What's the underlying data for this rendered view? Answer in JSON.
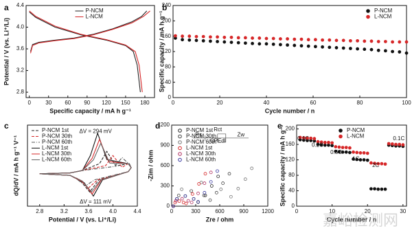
{
  "chart_data": [
    {
      "panel": "a",
      "type": "line",
      "xlabel": "Specific capacity / mA h g⁻¹",
      "ylabel": "Potential / V (vs. Li⁺/Li)",
      "xlim": [
        -5,
        195
      ],
      "ylim": [
        2.7,
        4.4
      ],
      "xticks": [
        0,
        30,
        60,
        90,
        120,
        150,
        180
      ],
      "yticks": [
        2.8,
        3.2,
        3.6,
        {
          "value": 4,
          "label": "4.0"
        },
        4.4
      ],
      "legend": "upper-center",
      "series": [
        {
          "name": "P-NCM",
          "color": "#222222",
          "dash": "solid",
          "x": [
            2,
            5,
            15,
            40,
            70,
            100,
            130,
            160,
            175,
            183,
            null,
            0,
            10,
            40,
            80,
            120,
            150,
            162,
            168,
            171,
            173
          ],
          "values": [
            3.55,
            3.68,
            3.72,
            3.76,
            3.8,
            3.87,
            3.97,
            4.1,
            4.2,
            4.3,
            null,
            4.28,
            4.18,
            4.0,
            3.86,
            3.76,
            3.66,
            3.55,
            3.3,
            3.0,
            2.8
          ]
        },
        {
          "name": "L-NCM",
          "color": "#d62728",
          "dash": "solid",
          "x": [
            2,
            5,
            15,
            40,
            70,
            100,
            130,
            160,
            178,
            188,
            null,
            0,
            10,
            40,
            80,
            120,
            150,
            165,
            171,
            174,
            176
          ],
          "values": [
            3.52,
            3.66,
            3.71,
            3.75,
            3.79,
            3.86,
            3.96,
            4.08,
            4.2,
            4.3,
            null,
            4.3,
            4.2,
            4.02,
            3.87,
            3.77,
            3.67,
            3.55,
            3.3,
            3.0,
            2.8
          ]
        }
      ]
    },
    {
      "panel": "b",
      "type": "scatter",
      "xlabel": "Cycle number / n",
      "ylabel": "Specific capacity / mA h g⁻¹",
      "xlim": [
        0,
        100
      ],
      "ylim": [
        0,
        240
      ],
      "xticks": [
        0,
        20,
        40,
        60,
        80,
        100
      ],
      "yticks": [
        0,
        40,
        80,
        120,
        160,
        200,
        240
      ],
      "legend": "upper-right",
      "series": [
        {
          "name": "P-NCM",
          "color": "#111111",
          "marker": "filled",
          "x": [
            1,
            4,
            7,
            10,
            13,
            16,
            19,
            22,
            25,
            28,
            31,
            34,
            37,
            40,
            43,
            46,
            49,
            52,
            55,
            58,
            61,
            64,
            67,
            70,
            73,
            76,
            79,
            82,
            85,
            88,
            91,
            94,
            97,
            100
          ],
          "values": [
            155,
            151,
            150,
            149,
            148,
            147,
            146,
            145,
            144,
            143,
            142,
            141,
            140,
            140,
            139,
            138,
            137,
            136,
            135,
            134,
            133,
            132,
            131,
            130,
            129,
            128,
            127,
            126,
            125,
            123,
            122,
            120,
            119,
            116
          ]
        },
        {
          "name": "L-NCM",
          "color": "#d62728",
          "marker": "filled",
          "x": [
            1,
            4,
            7,
            10,
            13,
            16,
            19,
            22,
            25,
            28,
            31,
            34,
            37,
            40,
            43,
            46,
            49,
            52,
            55,
            58,
            61,
            64,
            67,
            70,
            73,
            76,
            79,
            82,
            85,
            88,
            91,
            94,
            97,
            100
          ],
          "values": [
            161,
            160,
            160,
            159,
            159,
            158,
            158,
            157,
            157,
            156,
            156,
            155,
            155,
            154,
            154,
            153,
            153,
            152,
            152,
            151,
            151,
            150,
            150,
            149,
            149,
            148,
            148,
            147,
            147,
            146,
            146,
            145,
            145,
            145
          ]
        }
      ]
    },
    {
      "panel": "c",
      "type": "line",
      "xlabel": "Potential / V (vs. Li⁺/Li)",
      "ylabel": "dQ/dV / mA h g⁻¹ V⁻¹",
      "xlim": [
        2.6,
        4.4
      ],
      "ylim": [
        -0.8,
        1.2
      ],
      "xticks": [
        2.8,
        3.2,
        3.6,
        {
          "value": 4,
          "label": "4.0"
        },
        4.4
      ],
      "legend": "upper-left",
      "annotations": [
        "ΔV = 294 mV",
        "ΔV = 111 mV"
      ],
      "series": [
        {
          "name": "P-NCM 1st",
          "color": "#222222",
          "dash": "dashed",
          "x": [
            2.8,
            3.3,
            3.5,
            3.78,
            3.9,
            4.05,
            4.25,
            4.3,
            4.25,
            3.77,
            3.62,
            3.47,
            3.3,
            2.8
          ],
          "values": [
            0,
            0.02,
            0.08,
            0.25,
            0.55,
            0.19,
            0.25,
            0.15,
            0.05,
            -0.15,
            -0.45,
            -0.18,
            -0.04,
            0
          ]
        },
        {
          "name": "P-NCM 30th",
          "color": "#d62728",
          "dash": "dashed",
          "x": [
            2.8,
            3.3,
            3.5,
            3.88,
            4.0,
            4.15,
            4.25,
            4.3,
            4.25,
            3.75,
            3.6,
            3.45,
            3.3,
            2.8
          ],
          "values": [
            0,
            0.02,
            0.08,
            0.2,
            0.45,
            0.16,
            0.25,
            0.15,
            0.05,
            -0.15,
            -0.35,
            -0.14,
            -0.04,
            0
          ]
        },
        {
          "name": "P-NCM 60th",
          "color": "#555555",
          "dash": "dash-dot",
          "x": [
            2.8,
            3.3,
            3.5,
            4.03,
            4.15,
            4.22,
            4.27,
            4.3,
            4.25,
            3.7,
            3.55,
            3.4,
            3.3,
            2.8
          ],
          "values": [
            0,
            0.02,
            0.08,
            0.18,
            0.4,
            0.3,
            0.25,
            0.15,
            0.05,
            -0.15,
            -0.3,
            -0.12,
            -0.04,
            0
          ]
        },
        {
          "name": "L-NCM 1st",
          "color": "#111111",
          "dash": "solid",
          "x": [
            2.8,
            3.3,
            3.5,
            3.63,
            3.75,
            3.9,
            4.25,
            4.3,
            4.25,
            3.83,
            3.68,
            3.53,
            3.3,
            2.8
          ],
          "values": [
            0,
            0.02,
            0.08,
            0.45,
            1.0,
            0.35,
            0.25,
            0.15,
            0.05,
            -0.15,
            -0.55,
            -0.22,
            -0.04,
            0
          ]
        },
        {
          "name": "L-NCM 30th",
          "color": "#d62728",
          "dash": "solid",
          "x": [
            2.8,
            3.3,
            3.5,
            3.66,
            3.78,
            3.93,
            4.25,
            4.3,
            4.25,
            3.81,
            3.66,
            3.51,
            3.3,
            2.8
          ],
          "values": [
            0,
            0.02,
            0.08,
            0.38,
            0.85,
            0.3,
            0.25,
            0.15,
            0.05,
            -0.15,
            -0.5,
            -0.2,
            -0.04,
            0
          ]
        },
        {
          "name": "L-NCM 60th",
          "color": "#666666",
          "dash": "solid",
          "x": [
            2.8,
            3.3,
            3.5,
            3.68,
            3.8,
            3.95,
            4.25,
            4.3,
            4.25,
            3.8,
            3.65,
            3.5,
            3.3,
            2.8
          ],
          "values": [
            0,
            0.02,
            0.08,
            0.34,
            0.75,
            0.26,
            0.25,
            0.15,
            0.05,
            -0.15,
            -0.45,
            -0.18,
            -0.04,
            0
          ]
        }
      ]
    },
    {
      "panel": "d",
      "type": "scatter",
      "xlabel": "Zre / ohm",
      "ylabel": "-Zim / ohm",
      "xlim": [
        0,
        1200
      ],
      "ylim": [
        0,
        1200
      ],
      "xticks": [
        0,
        300,
        600,
        900,
        1200
      ],
      "yticks": [
        0,
        300,
        600,
        900,
        1200
      ],
      "legend": "upper-left",
      "annotations": [
        "Rs",
        "Rct",
        "CPEdl",
        "Zw"
      ],
      "series": [
        {
          "name": "P-NCM 1st",
          "color": "#222222",
          "marker": "open",
          "x": [
            20,
            65,
            170,
            275,
            330,
            420,
            500,
            580
          ],
          "values": [
            0,
            108,
            150,
            108,
            60,
            160,
            300,
            440
          ]
        },
        {
          "name": "P-NCM 30th",
          "color": "#444444",
          "marker": "open",
          "x": [
            20,
            88,
            245,
            403,
            480,
            560,
            640,
            720
          ],
          "values": [
            0,
            160,
            225,
            160,
            90,
            200,
            340,
            480
          ]
        },
        {
          "name": "P-NCM 60th",
          "color": "#777777",
          "marker": "open",
          "x": [
            20,
            125,
            370,
            615,
            740,
            830,
            920,
            1000
          ],
          "values": [
            0,
            250,
            350,
            250,
            140,
            260,
            400,
            560
          ]
        },
        {
          "name": "L-NCM 1st",
          "color": "#d62728",
          "marker": "open",
          "x": [
            20,
            43,
            95,
            148,
            180,
            260,
            340,
            420
          ],
          "values": [
            0,
            54,
            75,
            54,
            40,
            180,
            330,
            480
          ]
        },
        {
          "name": "L-NCM 30th",
          "color": "#b03060",
          "marker": "open",
          "x": [
            20,
            53,
            130,
            207,
            250,
            330,
            410,
            490
          ],
          "values": [
            0,
            80,
            110,
            80,
            55,
            190,
            340,
            500
          ]
        },
        {
          "name": "L-NCM 60th",
          "color": "#3a3aa0",
          "marker": "open",
          "x": [
            20,
            65,
            170,
            275,
            330,
            410,
            490,
            570
          ],
          "values": [
            0,
            108,
            150,
            108,
            65,
            200,
            360,
            520
          ]
        }
      ]
    },
    {
      "panel": "e",
      "type": "scatter",
      "xlabel": "Cycle number / n",
      "ylabel": "Specific capacity / mA h g⁻¹",
      "xlim": [
        0,
        31
      ],
      "ylim": [
        0,
        210
      ],
      "xticks": [
        0,
        10,
        20,
        30
      ],
      "yticks": [
        0,
        40,
        80,
        120,
        160,
        200
      ],
      "legend": "upper-center",
      "annotations": [
        "0.1C",
        "0.2C",
        "0.5C",
        "1C",
        "2C",
        "0.1C"
      ],
      "series": [
        {
          "name": "P-NCM",
          "color": "#111111",
          "marker": "filled",
          "x": [
            1,
            2,
            3,
            4,
            5,
            6,
            7,
            8,
            9,
            10,
            11,
            12,
            13,
            14,
            15,
            16,
            17,
            18,
            19,
            20,
            21,
            22,
            23,
            24,
            25,
            26,
            27,
            28,
            29,
            30
          ],
          "values": [
            172,
            171,
            170,
            170,
            169,
            160,
            159,
            158,
            158,
            157,
            142,
            141,
            140,
            140,
            139,
            122,
            121,
            120,
            120,
            119,
            45,
            45,
            44,
            44,
            44,
            158,
            157,
            156,
            156,
            155
          ]
        },
        {
          "name": "L-NCM",
          "color": "#d62728",
          "marker": "filled",
          "x": [
            1,
            2,
            3,
            4,
            5,
            6,
            7,
            8,
            9,
            10,
            11,
            12,
            13,
            14,
            15,
            16,
            17,
            18,
            19,
            20,
            21,
            22,
            23,
            24,
            25,
            26,
            27,
            28,
            29,
            30
          ],
          "values": [
            178,
            177,
            176,
            176,
            175,
            167,
            166,
            165,
            165,
            164,
            154,
            153,
            152,
            152,
            151,
            140,
            139,
            138,
            138,
            137,
            112,
            111,
            110,
            110,
            109,
            162,
            161,
            160,
            160,
            159
          ]
        }
      ]
    }
  ],
  "watermark": "嘉峪检测网"
}
